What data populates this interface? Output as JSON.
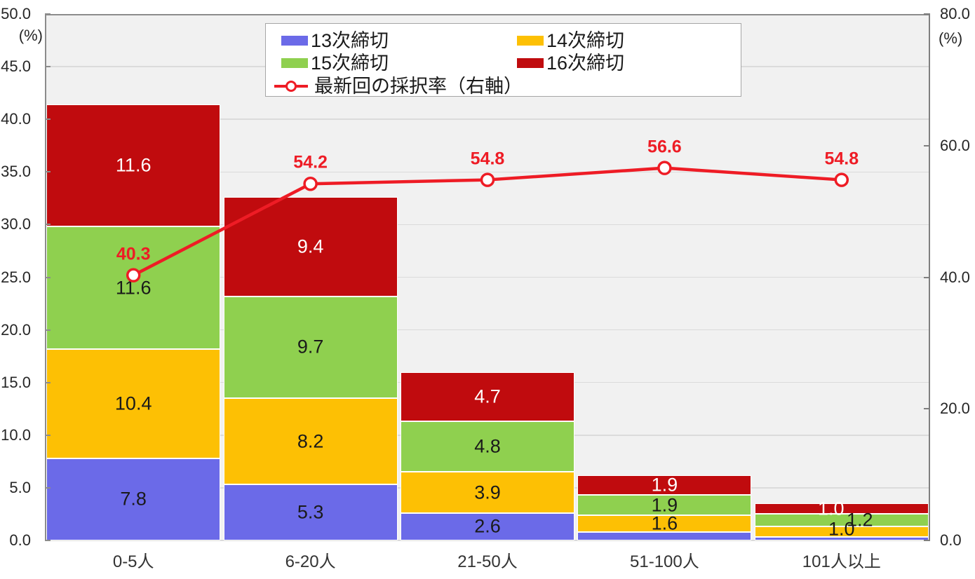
{
  "chart_data": {
    "type": "bar",
    "subtype": "stacked-bar-with-line-dual-axis",
    "categories": [
      "0-5人",
      "6-20人",
      "21-50人",
      "51-100人",
      "101人以上"
    ],
    "series": [
      {
        "name": "13次締切",
        "type": "bar",
        "color": "#6b6ae8",
        "label_color": "#1a1a1a",
        "values": [
          7.8,
          5.3,
          2.6,
          0.8,
          0.3
        ],
        "labels": [
          "7.8",
          "5.3",
          "2.6",
          null,
          null
        ]
      },
      {
        "name": "14次締切",
        "type": "bar",
        "color": "#fdc004",
        "label_color": "#1a1a1a",
        "values": [
          10.4,
          8.2,
          3.9,
          1.6,
          1.0
        ],
        "labels": [
          "10.4",
          "8.2",
          "3.9",
          "1.6",
          "1.0"
        ]
      },
      {
        "name": "15次締切",
        "type": "bar",
        "color": "#8fd04f",
        "label_color": "#1a1a1a",
        "values": [
          11.6,
          9.7,
          4.8,
          1.9,
          1.2
        ],
        "labels": [
          "11.6",
          "9.7",
          "4.8",
          "1.9",
          "1.2"
        ]
      },
      {
        "name": "16次締切",
        "type": "bar",
        "color": "#c00b0e",
        "label_color": "#ffffff",
        "values": [
          11.6,
          9.4,
          4.7,
          1.9,
          1.0
        ],
        "labels": [
          "11.6",
          "9.4",
          "4.7",
          "1.9",
          "1.0"
        ]
      }
    ],
    "line_series": {
      "name": "最新回の採択率（右軸）",
      "type": "line",
      "axis": "right",
      "color": "#ee1c25",
      "marker": "circle-white-fill",
      "values": [
        40.3,
        54.2,
        54.8,
        56.6,
        54.8
      ],
      "labels": [
        "40.3",
        "54.2",
        "54.8",
        "56.6",
        "54.8"
      ]
    },
    "left_axis": {
      "unit": "(%)",
      "min": 0,
      "max": 50,
      "tick_step": 5,
      "tick_labels": [
        "50.0",
        "45.0",
        "40.0",
        "35.0",
        "30.0",
        "25.0",
        "20.0",
        "15.0",
        "10.0",
        "5.0",
        "0.0"
      ]
    },
    "right_axis": {
      "unit": "(%)",
      "min": 0,
      "max": 80,
      "tick_step": 20,
      "tick_labels": [
        "80.0",
        "60.0",
        "40.0",
        "20.0",
        "0.0"
      ]
    },
    "legend": {
      "position": "top",
      "rows": [
        [
          {
            "series": 0
          },
          {
            "series": 1
          }
        ],
        [
          {
            "series": 2
          },
          {
            "series": 3
          }
        ],
        [
          {
            "series": "line"
          }
        ]
      ]
    },
    "grid": "horizontal",
    "plot_background": "#f1f1f1",
    "gridline_color": "#dbdbdb"
  }
}
